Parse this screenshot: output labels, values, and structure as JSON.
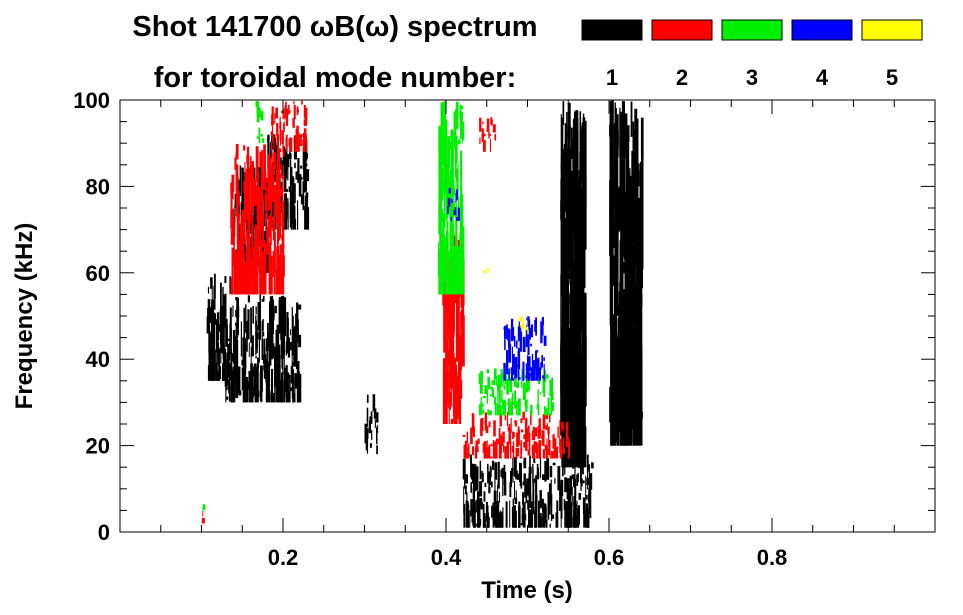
{
  "chart_data": {
    "type": "heatmap",
    "title_line1": "Shot 141700 ωB(ω) spectrum",
    "title_line2": "for toroidal mode number:",
    "xlabel": "Time (s)",
    "ylabel": "Frequency (kHz)",
    "xlim": [
      0.0,
      1.0
    ],
    "ylim": [
      0,
      100
    ],
    "xticks": [
      0.2,
      0.4,
      0.6,
      0.8
    ],
    "xtick_labels": [
      "0.2",
      "0.4",
      "0.6",
      "0.8"
    ],
    "yticks": [
      0,
      20,
      40,
      60,
      80,
      100
    ],
    "ytick_labels": [
      "0",
      "20",
      "40",
      "60",
      "80",
      "100"
    ],
    "grid": false,
    "legend_position": "top-right",
    "legend": [
      {
        "label": "1",
        "color": "#000000"
      },
      {
        "label": "2",
        "color": "#ff0000"
      },
      {
        "label": "3",
        "color": "#00ee00"
      },
      {
        "label": "4",
        "color": "#0000ff"
      },
      {
        "label": "5",
        "color": "#ffff00"
      }
    ],
    "regions": [
      {
        "n": 1,
        "t": [
          0.105,
          0.135
        ],
        "f": [
          35,
          60
        ]
      },
      {
        "n": 1,
        "t": [
          0.14,
          0.18
        ],
        "f": [
          60,
          85
        ]
      },
      {
        "n": 1,
        "t": [
          0.18,
          0.23
        ],
        "f": [
          70,
          93
        ]
      },
      {
        "n": 1,
        "t": [
          0.125,
          0.22
        ],
        "f": [
          30,
          55
        ]
      },
      {
        "n": 1,
        "t": [
          0.42,
          0.58
        ],
        "f": [
          1,
          18
        ]
      },
      {
        "n": 1,
        "t": [
          0.54,
          0.57
        ],
        "f": [
          15,
          100
        ]
      },
      {
        "n": 1,
        "t": [
          0.3,
          0.315
        ],
        "f": [
          18,
          32
        ]
      },
      {
        "n": 1,
        "t": [
          0.6,
          0.64
        ],
        "f": [
          20,
          100
        ]
      },
      {
        "n": 2,
        "t": [
          0.135,
          0.2
        ],
        "f": [
          55,
          90
        ]
      },
      {
        "n": 2,
        "t": [
          0.185,
          0.23
        ],
        "f": [
          88,
          100
        ]
      },
      {
        "n": 2,
        "t": [
          0.395,
          0.42
        ],
        "f": [
          25,
          70
        ]
      },
      {
        "n": 2,
        "t": [
          0.42,
          0.55
        ],
        "f": [
          17,
          28
        ]
      },
      {
        "n": 2,
        "t": [
          0.44,
          0.46
        ],
        "f": [
          88,
          96
        ]
      },
      {
        "n": 2,
        "t": [
          0.1,
          0.105
        ],
        "f": [
          2,
          5
        ]
      },
      {
        "n": 3,
        "t": [
          0.39,
          0.42
        ],
        "f": [
          55,
          100
        ]
      },
      {
        "n": 3,
        "t": [
          0.44,
          0.53
        ],
        "f": [
          27,
          38
        ]
      },
      {
        "n": 3,
        "t": [
          0.165,
          0.175
        ],
        "f": [
          90,
          100
        ]
      },
      {
        "n": 3,
        "t": [
          0.1,
          0.103
        ],
        "f": [
          5,
          7
        ]
      },
      {
        "n": 4,
        "t": [
          0.4,
          0.415
        ],
        "f": [
          72,
          80
        ]
      },
      {
        "n": 4,
        "t": [
          0.47,
          0.52
        ],
        "f": [
          35,
          50
        ]
      },
      {
        "n": 5,
        "t": [
          0.485,
          0.5
        ],
        "f": [
          45,
          50
        ]
      },
      {
        "n": 5,
        "t": [
          0.44,
          0.45
        ],
        "f": [
          60,
          62
        ]
      }
    ]
  }
}
